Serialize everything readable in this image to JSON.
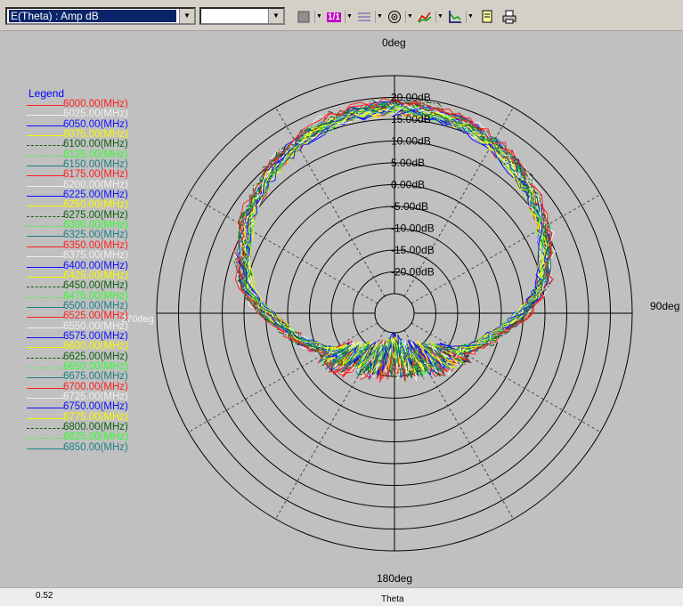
{
  "toolbar": {
    "quantity_combo_value": "E(Theta) : Amp dB",
    "second_combo_value": "",
    "scale_button_label": "1/1"
  },
  "legend": {
    "title": "Legend",
    "items": [
      {
        "label": "6000.00(MHz)",
        "color": "#ff2020",
        "dash": "solid"
      },
      {
        "label": "6025.00(MHz)",
        "color": "#f0f0f0",
        "dash": "solid"
      },
      {
        "label": "6050.00(MHz)",
        "color": "#1010ff",
        "dash": "solid"
      },
      {
        "label": "6075.00(MHz)",
        "color": "#f8f800",
        "dash": "solid"
      },
      {
        "label": "6100.00(MHz)",
        "color": "#106010",
        "dash": "dashdot"
      },
      {
        "label": "6125.00(MHz)",
        "color": "#30ff30",
        "dash": "dotted"
      },
      {
        "label": "6150.00(MHz)",
        "color": "#208080",
        "dash": "solid"
      },
      {
        "label": "6175.00(MHz)",
        "color": "#ff2020",
        "dash": "solid"
      },
      {
        "label": "6200.00(MHz)",
        "color": "#f0f0f0",
        "dash": "solid"
      },
      {
        "label": "6225.00(MHz)",
        "color": "#1010ff",
        "dash": "solid"
      },
      {
        "label": "6250.00(MHz)",
        "color": "#f8f800",
        "dash": "solid"
      },
      {
        "label": "6275.00(MHz)",
        "color": "#106010",
        "dash": "dashdot"
      },
      {
        "label": "6300.00(MHz)",
        "color": "#30ff30",
        "dash": "dotted"
      },
      {
        "label": "6325.00(MHz)",
        "color": "#208080",
        "dash": "solid"
      },
      {
        "label": "6350.00(MHz)",
        "color": "#ff2020",
        "dash": "solid"
      },
      {
        "label": "6375.00(MHz)",
        "color": "#f0f0f0",
        "dash": "solid"
      },
      {
        "label": "6400.00(MHz)",
        "color": "#1010ff",
        "dash": "solid"
      },
      {
        "label": "6425.00(MHz)",
        "color": "#f8f800",
        "dash": "solid"
      },
      {
        "label": "6450.00(MHz)",
        "color": "#106010",
        "dash": "dashdot"
      },
      {
        "label": "6475.00(MHz)",
        "color": "#30ff30",
        "dash": "dotted"
      },
      {
        "label": "6500.00(MHz)",
        "color": "#208080",
        "dash": "solid"
      },
      {
        "label": "6525.00(MHz)",
        "color": "#ff2020",
        "dash": "solid"
      },
      {
        "label": "6550.00(MHz)",
        "color": "#f0f0f0",
        "dash": "solid"
      },
      {
        "label": "6575.00(MHz)",
        "color": "#1010ff",
        "dash": "solid"
      },
      {
        "label": "6600.00(MHz)",
        "color": "#f8f800",
        "dash": "solid"
      },
      {
        "label": "6625.00(MHz)",
        "color": "#106010",
        "dash": "dashdot"
      },
      {
        "label": "6650.00(MHz)",
        "color": "#30ff30",
        "dash": "dotted"
      },
      {
        "label": "6675.00(MHz)",
        "color": "#208080",
        "dash": "solid"
      },
      {
        "label": "6700.00(MHz)",
        "color": "#ff2020",
        "dash": "solid"
      },
      {
        "label": "6725.00(MHz)",
        "color": "#f0f0f0",
        "dash": "solid"
      },
      {
        "label": "6750.00(MHz)",
        "color": "#1010ff",
        "dash": "solid"
      },
      {
        "label": "6775.00(MHz)",
        "color": "#f8f800",
        "dash": "solid"
      },
      {
        "label": "6800.00(MHz)",
        "color": "#106010",
        "dash": "dashdot"
      },
      {
        "label": "6825.00(MHz)",
        "color": "#30ff30",
        "dash": "dotted"
      },
      {
        "label": "6850.00(MHz)",
        "color": "#208080",
        "dash": "solid"
      }
    ]
  },
  "chart_data": {
    "type": "polar",
    "radial_ticks": [
      "20.00dB",
      "15.00dB",
      "10.00dB",
      "5.00dB",
      "0.00dB",
      "-5.00dB",
      "-10.00dB",
      "-15.00dB",
      "-20.00dB"
    ],
    "radial_range": [
      -25,
      25
    ],
    "angle_labels": {
      "top": "0deg",
      "right": "90deg",
      "bottom": "180deg",
      "left": "270deg"
    },
    "grid": true,
    "legend_position": "left",
    "pattern_profile": {
      "theta_deg": [
        0,
        20,
        40,
        60,
        80,
        100,
        120,
        140,
        160,
        180,
        200,
        220,
        240,
        260,
        280,
        300,
        320,
        340,
        360
      ],
      "amp_db": [
        18,
        17,
        14,
        10,
        5,
        -5,
        -12,
        -16,
        -18,
        -20,
        -18,
        -16,
        -12,
        -5,
        5,
        10,
        14,
        17,
        18
      ]
    }
  },
  "status": {
    "left_value": "0.52",
    "center_label": "Theta"
  }
}
